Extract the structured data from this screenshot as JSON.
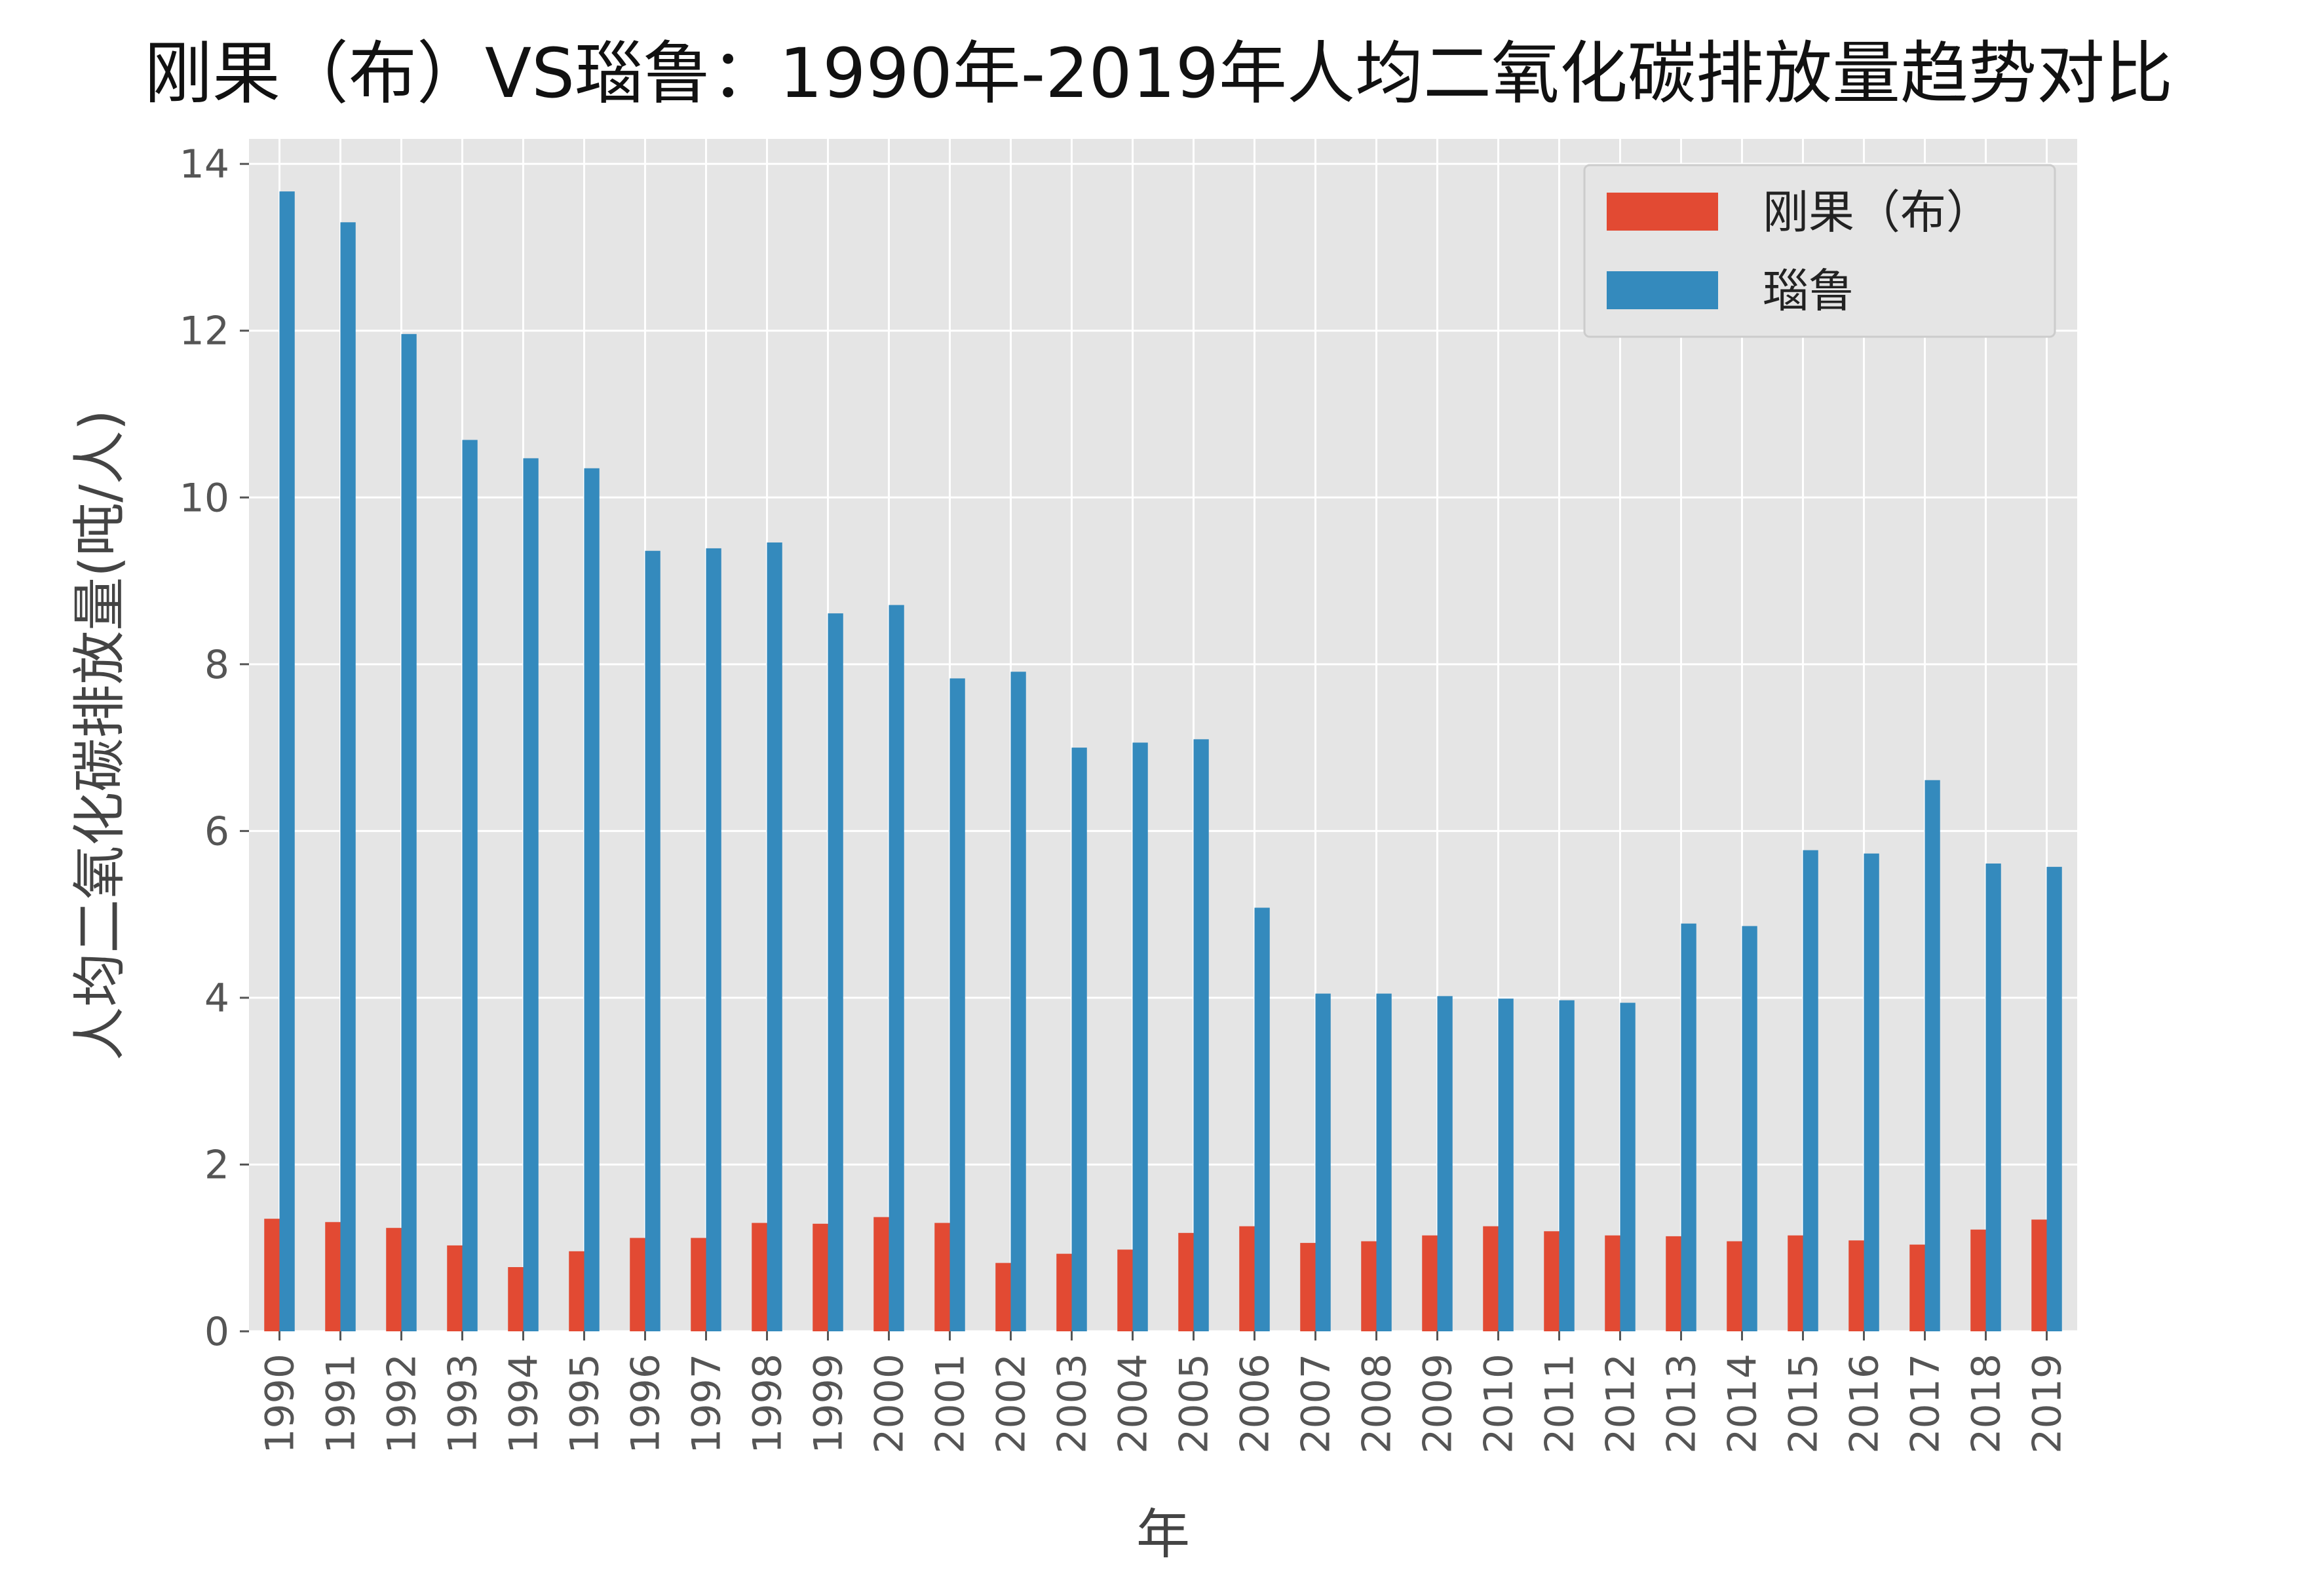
{
  "chart_data": {
    "type": "bar",
    "title": "刚果（布）VS瑙鲁：1990年-2019年人均二氧化碳排放量趋势对比",
    "xlabel": "年",
    "ylabel": "人均二氧化碳排放量(吨/人)",
    "ylim": [
      0,
      14.3
    ],
    "yticks": [
      "0",
      "2",
      "4",
      "6",
      "8",
      "10",
      "12",
      "14"
    ],
    "grid": true,
    "legend_position": "top-right",
    "categories": [
      "1990",
      "1991",
      "1992",
      "1993",
      "1994",
      "1995",
      "1996",
      "1997",
      "1998",
      "1999",
      "2000",
      "2001",
      "2002",
      "2003",
      "2004",
      "2005",
      "2006",
      "2007",
      "2008",
      "2009",
      "2010",
      "2011",
      "2012",
      "2013",
      "2014",
      "2015",
      "2016",
      "2017",
      "2018",
      "2019"
    ],
    "series": [
      {
        "name": "刚果（布）",
        "color": "#e24a33",
        "values": [
          1.35,
          1.31,
          1.24,
          1.03,
          0.77,
          0.96,
          1.12,
          1.12,
          1.3,
          1.29,
          1.37,
          1.3,
          0.82,
          0.93,
          0.98,
          1.18,
          1.26,
          1.06,
          1.08,
          1.15,
          1.26,
          1.2,
          1.15,
          1.14,
          1.08,
          1.15,
          1.09,
          1.04,
          1.22,
          1.34
        ]
      },
      {
        "name": "瑙鲁",
        "color": "#348abd",
        "values": [
          13.67,
          13.3,
          11.96,
          10.69,
          10.47,
          10.35,
          9.36,
          9.39,
          9.46,
          8.61,
          8.71,
          7.83,
          7.91,
          7.0,
          7.06,
          7.1,
          5.08,
          4.05,
          4.05,
          4.02,
          3.99,
          3.97,
          3.94,
          4.89,
          4.86,
          5.77,
          5.73,
          6.61,
          5.61,
          5.57
        ]
      }
    ]
  }
}
